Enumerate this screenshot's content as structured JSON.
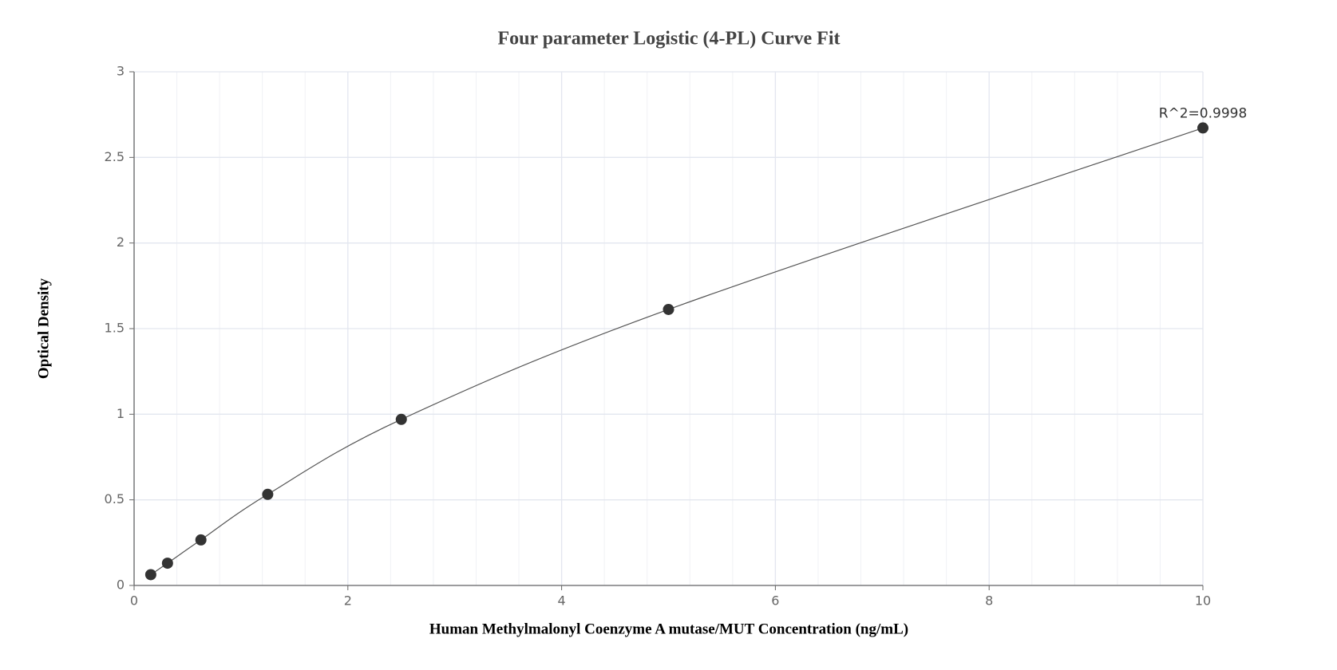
{
  "chart_data": {
    "type": "scatter",
    "title": "Four parameter Logistic (4-PL) Curve Fit",
    "x_label": "Human Methylmalonyl Coenzyme A mutase/MUT Concentration (ng/mL)",
    "y_label": "Optical Density",
    "annotation": "R^2=0.9998",
    "x": [
      0.156,
      0.3125,
      0.625,
      1.25,
      2.5,
      5,
      10
    ],
    "values": [
      0.063,
      0.13,
      0.266,
      0.532,
      0.97,
      1.612,
      2.672
    ],
    "color": "#333333",
    "line_color": "#555555",
    "xlim": [
      0,
      10
    ],
    "xticks": [
      0,
      2,
      4,
      6,
      8,
      10
    ],
    "ylim": [
      0,
      3
    ],
    "yticks": [
      0,
      0.5,
      1,
      1.5,
      2,
      2.5,
      3
    ],
    "grid": true
  }
}
